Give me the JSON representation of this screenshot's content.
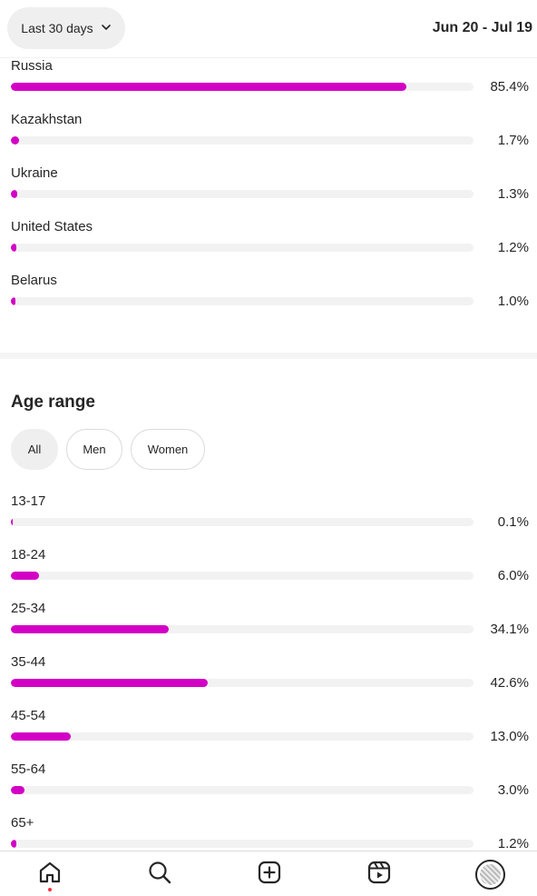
{
  "header": {
    "range_label": "Last 30 days",
    "date_range": "Jun 20 - Jul 19"
  },
  "countries": {
    "items": [
      {
        "label": "Russia",
        "value": "85.4%",
        "percent": 85.4
      },
      {
        "label": "Kazakhstan",
        "value": "1.7%",
        "percent": 1.7
      },
      {
        "label": "Ukraine",
        "value": "1.3%",
        "percent": 1.3
      },
      {
        "label": "United States",
        "value": "1.2%",
        "percent": 1.2
      },
      {
        "label": "Belarus",
        "value": "1.0%",
        "percent": 1.0
      }
    ]
  },
  "age_range": {
    "title": "Age range",
    "filters": [
      {
        "label": "All",
        "active": true
      },
      {
        "label": "Men",
        "active": false
      },
      {
        "label": "Women",
        "active": false
      }
    ],
    "items": [
      {
        "label": "13-17",
        "value": "0.1%",
        "percent": 0.1
      },
      {
        "label": "18-24",
        "value": "6.0%",
        "percent": 6.0
      },
      {
        "label": "25-34",
        "value": "34.1%",
        "percent": 34.1
      },
      {
        "label": "35-44",
        "value": "42.6%",
        "percent": 42.6
      },
      {
        "label": "45-54",
        "value": "13.0%",
        "percent": 13.0
      },
      {
        "label": "55-64",
        "value": "3.0%",
        "percent": 3.0
      },
      {
        "label": "65+",
        "value": "1.2%",
        "percent": 1.2
      }
    ]
  },
  "bottom_nav": {
    "items": [
      {
        "icon": "home-icon"
      },
      {
        "icon": "search-icon"
      },
      {
        "icon": "create-icon"
      },
      {
        "icon": "reels-icon"
      },
      {
        "icon": "profile-avatar"
      }
    ]
  },
  "colors": {
    "accent": "#d300c5",
    "track": "#f2f2f2"
  }
}
